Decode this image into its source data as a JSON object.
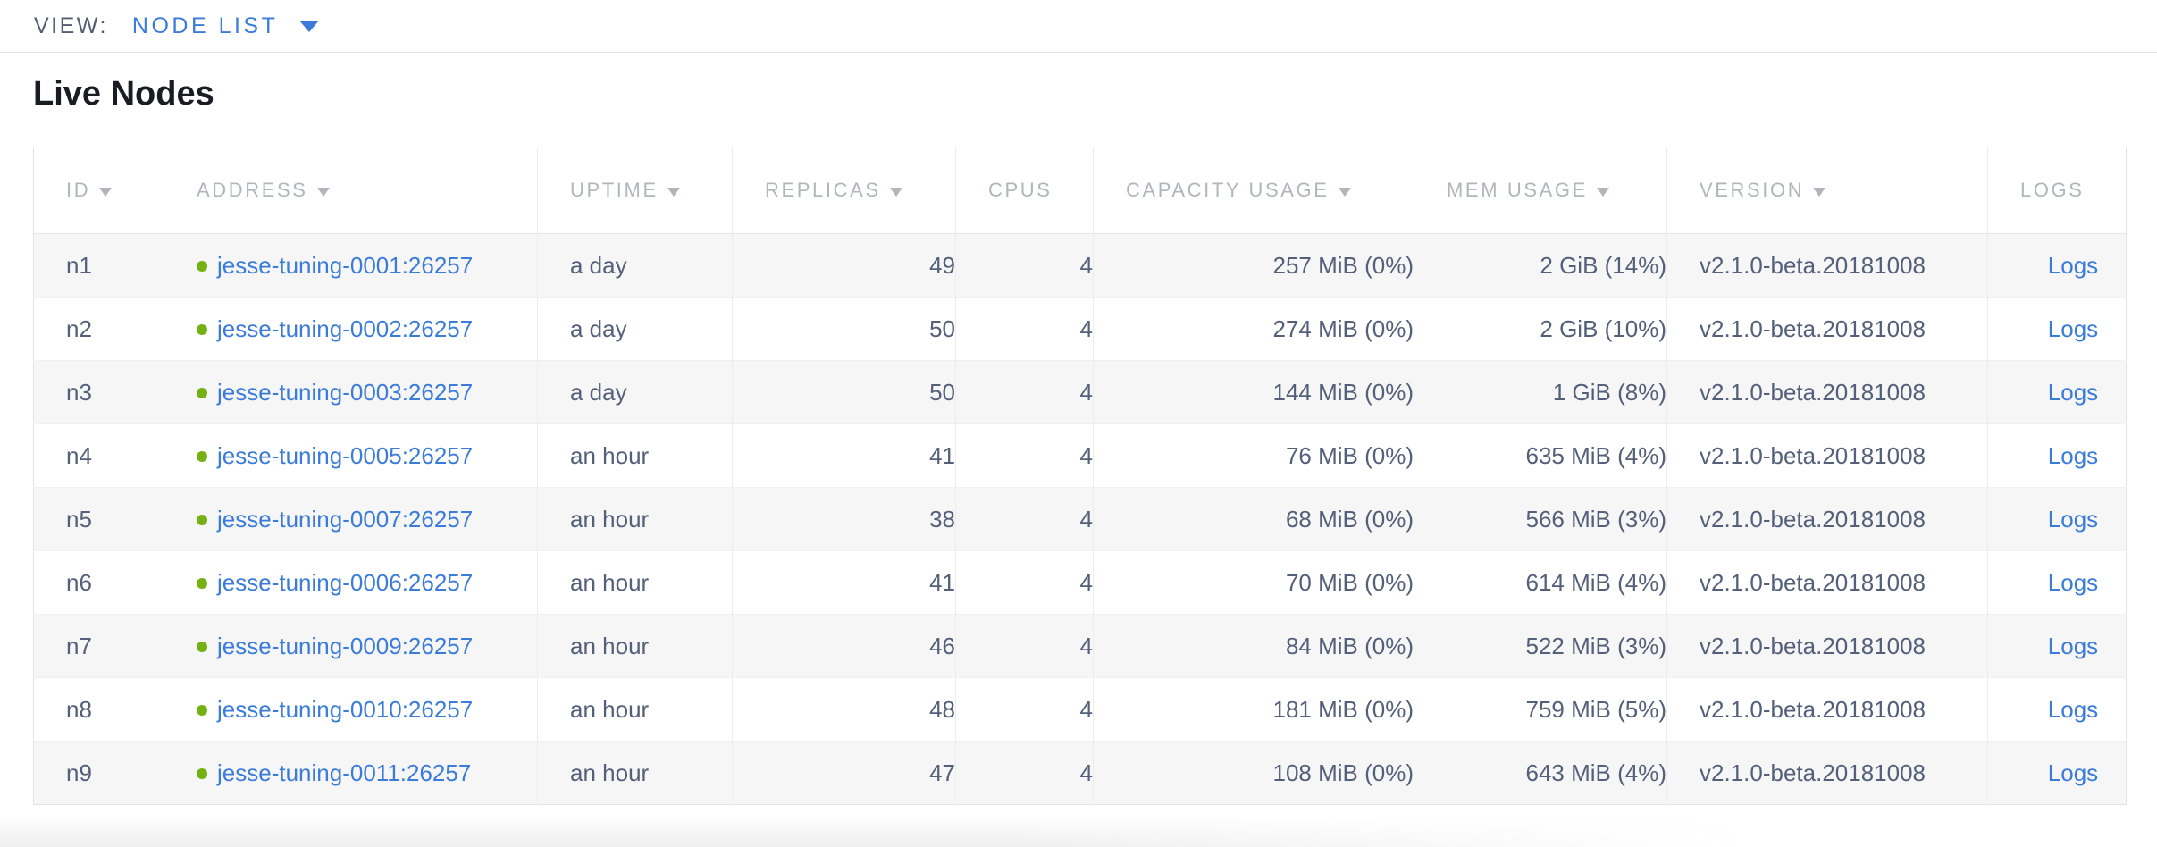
{
  "view_bar": {
    "label": "VIEW:",
    "selected": "NODE LIST"
  },
  "page": {
    "title": "Live Nodes"
  },
  "table": {
    "columns": [
      {
        "key": "id",
        "label": "ID",
        "sortable": true
      },
      {
        "key": "address",
        "label": "ADDRESS",
        "sortable": true
      },
      {
        "key": "uptime",
        "label": "UPTIME",
        "sortable": true
      },
      {
        "key": "replicas",
        "label": "REPLICAS",
        "sortable": true
      },
      {
        "key": "cpus",
        "label": "CPUS",
        "sortable": false
      },
      {
        "key": "capacity",
        "label": "CAPACITY USAGE",
        "sortable": true
      },
      {
        "key": "mem",
        "label": "MEM USAGE",
        "sortable": true
      },
      {
        "key": "version",
        "label": "VERSION",
        "sortable": true
      },
      {
        "key": "logs",
        "label": "LOGS",
        "sortable": false
      }
    ],
    "rows": [
      {
        "id": "n1",
        "status": "live",
        "address": "jesse-tuning-0001:26257",
        "uptime": "a day",
        "replicas": "49",
        "cpus": "4",
        "capacity": "257 MiB (0%)",
        "mem": "2 GiB (14%)",
        "version": "v2.1.0-beta.20181008",
        "logs": "Logs"
      },
      {
        "id": "n2",
        "status": "live",
        "address": "jesse-tuning-0002:26257",
        "uptime": "a day",
        "replicas": "50",
        "cpus": "4",
        "capacity": "274 MiB (0%)",
        "mem": "2 GiB (10%)",
        "version": "v2.1.0-beta.20181008",
        "logs": "Logs"
      },
      {
        "id": "n3",
        "status": "live",
        "address": "jesse-tuning-0003:26257",
        "uptime": "a day",
        "replicas": "50",
        "cpus": "4",
        "capacity": "144 MiB (0%)",
        "mem": "1 GiB (8%)",
        "version": "v2.1.0-beta.20181008",
        "logs": "Logs"
      },
      {
        "id": "n4",
        "status": "live",
        "address": "jesse-tuning-0005:26257",
        "uptime": "an hour",
        "replicas": "41",
        "cpus": "4",
        "capacity": "76 MiB (0%)",
        "mem": "635 MiB (4%)",
        "version": "v2.1.0-beta.20181008",
        "logs": "Logs"
      },
      {
        "id": "n5",
        "status": "live",
        "address": "jesse-tuning-0007:26257",
        "uptime": "an hour",
        "replicas": "38",
        "cpus": "4",
        "capacity": "68 MiB (0%)",
        "mem": "566 MiB (3%)",
        "version": "v2.1.0-beta.20181008",
        "logs": "Logs"
      },
      {
        "id": "n6",
        "status": "live",
        "address": "jesse-tuning-0006:26257",
        "uptime": "an hour",
        "replicas": "41",
        "cpus": "4",
        "capacity": "70 MiB (0%)",
        "mem": "614 MiB (4%)",
        "version": "v2.1.0-beta.20181008",
        "logs": "Logs"
      },
      {
        "id": "n7",
        "status": "live",
        "address": "jesse-tuning-0009:26257",
        "uptime": "an hour",
        "replicas": "46",
        "cpus": "4",
        "capacity": "84 MiB (0%)",
        "mem": "522 MiB (3%)",
        "version": "v2.1.0-beta.20181008",
        "logs": "Logs"
      },
      {
        "id": "n8",
        "status": "live",
        "address": "jesse-tuning-0010:26257",
        "uptime": "an hour",
        "replicas": "48",
        "cpus": "4",
        "capacity": "181 MiB (0%)",
        "mem": "759 MiB (5%)",
        "version": "v2.1.0-beta.20181008",
        "logs": "Logs"
      },
      {
        "id": "n9",
        "status": "live",
        "address": "jesse-tuning-0011:26257",
        "uptime": "an hour",
        "replicas": "47",
        "cpus": "4",
        "capacity": "108 MiB (0%)",
        "mem": "643 MiB (4%)",
        "version": "v2.1.0-beta.20181008",
        "logs": "Logs"
      }
    ]
  },
  "colors": {
    "accent": "#3b7cdb",
    "live_green": "#76b113"
  }
}
